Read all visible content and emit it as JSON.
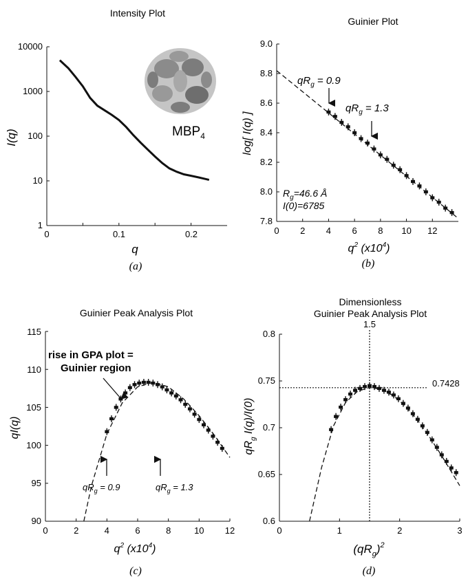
{
  "figure": {
    "panels": [
      {
        "panel_label": "(a)",
        "title": "Intensity Plot",
        "xlabel": "q",
        "ylabel": "I(q)",
        "xticks": [
          "0",
          "0.1",
          "0.2"
        ],
        "yticks": [
          "1",
          "10",
          "100",
          "1000",
          "10000"
        ],
        "inset_label": "MBP",
        "inset_label_sub": "4"
      },
      {
        "panel_label": "(b)",
        "title": "Guinier Plot",
        "xlabel": "q",
        "xlabel_sup": "2",
        "xlabel_rest": " (x10",
        "xlabel_sup2": "4",
        "xlabel_end": ")",
        "ylabel": "log[ I(q) ]",
        "xticks": [
          "0",
          "2",
          "4",
          "6",
          "8",
          "10",
          "12"
        ],
        "yticks": [
          "7.8",
          "8.0",
          "8.2",
          "8.4",
          "8.6",
          "8.8",
          "9.0"
        ],
        "annotations": [
          {
            "main": "qR",
            "sub": "g",
            "rest": " = 0.9"
          },
          {
            "main": "qR",
            "sub": "g",
            "rest": " = 1.3"
          },
          {
            "main": "R",
            "sub": "g",
            "rest": "=46.6 Å"
          },
          {
            "main": "I(0)=6785",
            "sub": "",
            "rest": ""
          }
        ]
      },
      {
        "panel_label": "(c)",
        "title": "Guinier Peak Analysis Plot",
        "xlabel": "q",
        "xlabel_sup": "2",
        "xlabel_rest": " (x10",
        "xlabel_sup2": "4",
        "xlabel_end": ")",
        "ylabel": "qI(q)",
        "xticks": [
          "0",
          "2",
          "4",
          "6",
          "8",
          "10",
          "12"
        ],
        "yticks": [
          "90",
          "95",
          "100",
          "105",
          "110",
          "115"
        ],
        "annotations": [
          {
            "line1": "rise in GPA plot =",
            "line2": "Guinier region"
          },
          {
            "main": "qR",
            "sub": "g",
            "rest": " = 0.9"
          },
          {
            "main": "qR",
            "sub": "g",
            "rest": " = 1.3"
          }
        ]
      },
      {
        "panel_label": "(d)",
        "title_line1": "Dimensionless",
        "title_line2": "Guinier Peak Analysis Plot",
        "xlabel": "(qR",
        "xlabel_sub": "g",
        "xlabel_end": ")",
        "xlabel_sup": "2",
        "ylabel_main": "qR",
        "ylabel_sub": "g",
        "ylabel_rest": " I(q)/I(0)",
        "xticks": [
          "0",
          "1",
          "2",
          "3"
        ],
        "yticks": [
          "0.6",
          "0.65",
          "0.7",
          "0.75",
          "0.8"
        ],
        "vline_label": "1.5",
        "hline_label": "0.7428"
      }
    ]
  },
  "chart_data": [
    {
      "type": "line",
      "title": "Intensity Plot",
      "xlabel": "q",
      "ylabel": "I(q)",
      "xlim": [
        0,
        0.25
      ],
      "ylim": [
        1,
        10000
      ],
      "yscale": "log",
      "grid": false,
      "x": [
        0.018,
        0.03,
        0.04,
        0.05,
        0.06,
        0.07,
        0.08,
        0.09,
        0.1,
        0.11,
        0.12,
        0.13,
        0.14,
        0.15,
        0.16,
        0.17,
        0.18,
        0.19,
        0.2,
        0.21,
        0.22,
        0.225
      ],
      "y": [
        5000,
        3300,
        2100,
        1300,
        720,
        480,
        380,
        300,
        230,
        160,
        105,
        72,
        50,
        35,
        25,
        19,
        16,
        14,
        13,
        12,
        11,
        10.5
      ]
    },
    {
      "type": "scatter",
      "title": "Guinier Plot",
      "xlabel": "q² (x10⁴)",
      "ylabel": "log[ I(q) ]",
      "xlim": [
        0,
        14
      ],
      "ylim": [
        7.8,
        9.0
      ],
      "grid": false,
      "fit_line": {
        "x": [
          0,
          14
        ],
        "y": [
          8.82,
          7.82
        ]
      },
      "x": [
        4.0,
        4.5,
        5.0,
        5.5,
        6.0,
        6.5,
        7.0,
        7.5,
        8.0,
        8.5,
        9.0,
        9.5,
        10.0,
        10.5,
        11.0,
        11.5,
        12.0,
        12.5,
        13.0,
        13.5
      ],
      "y": [
        8.54,
        8.51,
        8.47,
        8.44,
        8.4,
        8.36,
        8.33,
        8.29,
        8.25,
        8.22,
        8.18,
        8.15,
        8.11,
        8.07,
        8.04,
        8.0,
        7.96,
        7.93,
        7.89,
        7.86
      ]
    },
    {
      "type": "scatter",
      "title": "Guinier Peak Analysis Plot",
      "xlabel": "q² (x10⁴)",
      "ylabel": "qI(q)",
      "xlim": [
        0,
        12
      ],
      "ylim": [
        90,
        115
      ],
      "grid": false,
      "fit_curve": {
        "x": [
          2.5,
          3,
          4,
          5,
          6,
          7,
          8,
          9,
          10,
          11,
          12
        ],
        "y": [
          90,
          94.7,
          101.5,
          105.6,
          107.7,
          108.3,
          107.7,
          106.1,
          103.9,
          101.3,
          98.4
        ]
      },
      "x": [
        4.0,
        4.3,
        4.6,
        4.9,
        5.2,
        5.5,
        5.8,
        6.1,
        6.4,
        6.7,
        7.0,
        7.3,
        7.6,
        7.9,
        8.2,
        8.5,
        8.8,
        9.1,
        9.4,
        9.7,
        10.0,
        10.3,
        10.6,
        10.9,
        11.2,
        11.5
      ],
      "y": [
        101.8,
        103.5,
        105.0,
        106.1,
        106.9,
        107.6,
        108.0,
        108.2,
        108.3,
        108.3,
        108.2,
        108.0,
        107.7,
        107.3,
        106.9,
        106.5,
        106.0,
        105.4,
        104.8,
        104.1,
        103.4,
        102.7,
        102.0,
        101.2,
        100.4,
        99.6
      ]
    },
    {
      "type": "scatter",
      "title": "Dimensionless Guinier Peak Analysis Plot",
      "xlabel": "(qRg)²",
      "ylabel": "qRg I(q)/I(0)",
      "xlim": [
        0,
        3
      ],
      "ylim": [
        0.6,
        0.8
      ],
      "grid": false,
      "vline": 1.5,
      "hline": 0.7428,
      "fit_curve": {
        "x": [
          0.5,
          0.7,
          0.9,
          1.1,
          1.3,
          1.5,
          1.7,
          1.9,
          2.1,
          2.3,
          2.5,
          2.7,
          3.0
        ],
        "y": [
          0.6,
          0.657,
          0.702,
          0.727,
          0.739,
          0.743,
          0.741,
          0.734,
          0.723,
          0.708,
          0.69,
          0.67,
          0.638
        ]
      },
      "x": [
        0.86,
        0.94,
        1.02,
        1.1,
        1.18,
        1.26,
        1.34,
        1.42,
        1.5,
        1.58,
        1.66,
        1.74,
        1.82,
        1.9,
        1.98,
        2.06,
        2.14,
        2.22,
        2.3,
        2.38,
        2.46,
        2.54,
        2.62,
        2.7,
        2.78,
        2.86,
        2.94
      ],
      "y": [
        0.698,
        0.712,
        0.722,
        0.73,
        0.736,
        0.74,
        0.742,
        0.744,
        0.745,
        0.744,
        0.742,
        0.74,
        0.738,
        0.735,
        0.731,
        0.726,
        0.721,
        0.715,
        0.709,
        0.702,
        0.695,
        0.687,
        0.679,
        0.671,
        0.664,
        0.657,
        0.652
      ]
    }
  ]
}
